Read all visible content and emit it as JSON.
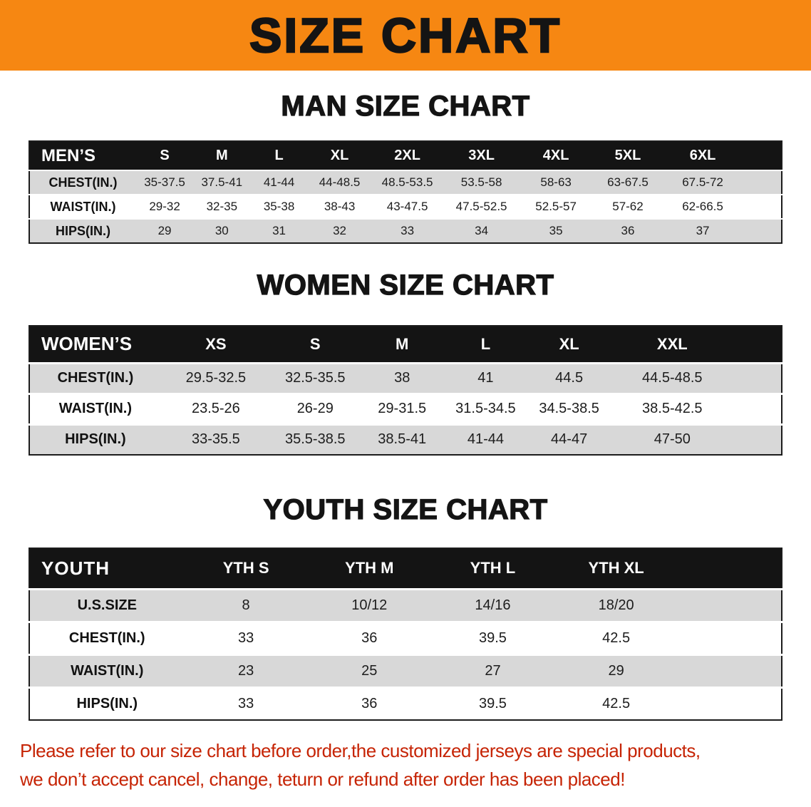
{
  "banner": {
    "title": "SIZE CHART",
    "background_color": "#f68712",
    "text_color": "#141414"
  },
  "sections": [
    {
      "heading": "MAN SIZE CHART",
      "table": {
        "header": [
          "MEN’S",
          "S",
          "M",
          "L",
          "XL",
          "2XL",
          "3XL",
          "4XL",
          "5XL",
          "6XL"
        ],
        "rows": [
          [
            "CHEST(IN.)",
            "35-37.5",
            "37.5-41",
            "41-44",
            "44-48.5",
            "48.5-53.5",
            "53.5-58",
            "58-63",
            "63-67.5",
            "67.5-72"
          ],
          [
            "WAIST(IN.)",
            "29-32",
            "32-35",
            "35-38",
            "38-43",
            "43-47.5",
            "47.5-52.5",
            "52.5-57",
            "57-62",
            "62-66.5"
          ],
          [
            "HIPS(IN.)",
            "29",
            "30",
            "31",
            "32",
            "33",
            "34",
            "35",
            "36",
            "37"
          ]
        ]
      }
    },
    {
      "heading": "WOMEN SIZE CHART",
      "table": {
        "header": [
          "WOMEN’S",
          "XS",
          "S",
          "M",
          "L",
          "XL",
          "XXL"
        ],
        "rows": [
          [
            "CHEST(IN.)",
            "29.5-32.5",
            "32.5-35.5",
            "38",
            "41",
            "44.5",
            "44.5-48.5"
          ],
          [
            "WAIST(IN.)",
            "23.5-26",
            "26-29",
            "29-31.5",
            "31.5-34.5",
            "34.5-38.5",
            "38.5-42.5"
          ],
          [
            "HIPS(IN.)",
            "33-35.5",
            "35.5-38.5",
            "38.5-41",
            "41-44",
            "44-47",
            "47-50"
          ]
        ]
      }
    },
    {
      "heading": "YOUTH SIZE CHART",
      "table": {
        "header": [
          "YOUTH",
          "YTH S",
          "YTH M",
          "YTH L",
          "YTH XL"
        ],
        "rows": [
          [
            "U.S.SIZE",
            "8",
            "10/12",
            "14/16",
            "18/20"
          ],
          [
            "CHEST(IN.)",
            "33",
            "36",
            "39.5",
            "42.5"
          ],
          [
            "WAIST(IN.)",
            "23",
            "25",
            "27",
            "29"
          ],
          [
            "HIPS(IN.)",
            "33",
            "36",
            "39.5",
            "42.5"
          ]
        ]
      }
    }
  ],
  "disclaimer": {
    "line1": "Please refer to our size chart before order,the customized jerseys are special products,",
    "line2": "we don’t accept cancel, change, teturn or refund after order has been placed!",
    "text_color": "#c62405"
  },
  "colors": {
    "table_header_bg": "#141414",
    "row_gray": "#d8d8d8",
    "row_white": "#ffffff"
  }
}
